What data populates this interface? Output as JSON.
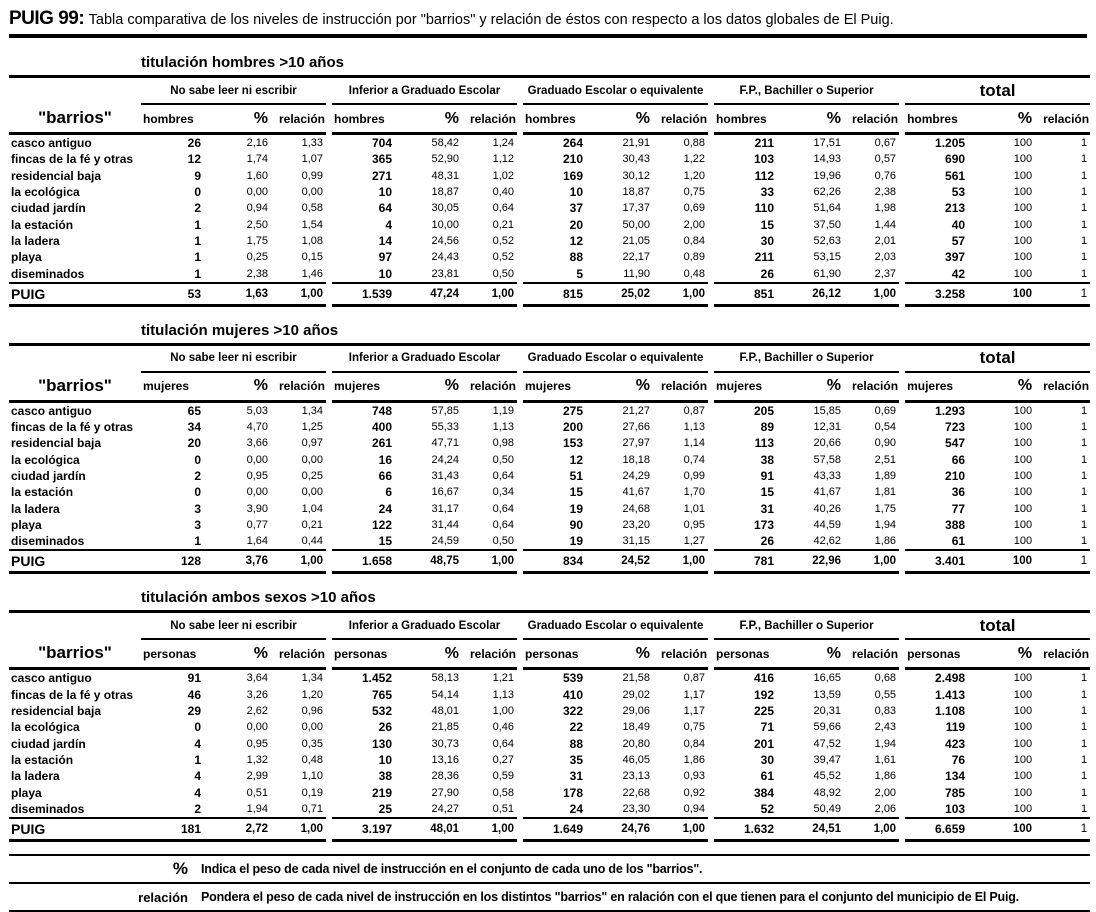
{
  "page": {
    "title_prefix": "PUIG 99:",
    "title_text": "Tabla comparativa de los niveles de instrucción por \"barrios\" y relación de éstos con respecto a los datos globales de El Puig."
  },
  "shared": {
    "row_label_header": "\"barrios\"",
    "groups": [
      "No sabe leer ni escribir",
      "Inferior a Graduado Escolar",
      "Graduado Escolar o equivalente",
      "F.P., Bachiller o Superior",
      "total"
    ],
    "pct_header": "%",
    "rel_header": "relación"
  },
  "tables": [
    {
      "section_title": "titulación hombres >10 años",
      "unit_label": "hombres",
      "rows": [
        {
          "label": "casco antiguo",
          "cells": [
            [
              "26",
              "2,16",
              "1,33"
            ],
            [
              "704",
              "58,42",
              "1,24"
            ],
            [
              "264",
              "21,91",
              "0,88"
            ],
            [
              "211",
              "17,51",
              "0,67"
            ],
            [
              "1.205",
              "100",
              "1"
            ]
          ]
        },
        {
          "label": "fincas de la fé y otras",
          "cells": [
            [
              "12",
              "1,74",
              "1,07"
            ],
            [
              "365",
              "52,90",
              "1,12"
            ],
            [
              "210",
              "30,43",
              "1,22"
            ],
            [
              "103",
              "14,93",
              "0,57"
            ],
            [
              "690",
              "100",
              "1"
            ]
          ]
        },
        {
          "label": "residencial baja",
          "cells": [
            [
              "9",
              "1,60",
              "0,99"
            ],
            [
              "271",
              "48,31",
              "1,02"
            ],
            [
              "169",
              "30,12",
              "1,20"
            ],
            [
              "112",
              "19,96",
              "0,76"
            ],
            [
              "561",
              "100",
              "1"
            ]
          ]
        },
        {
          "label": "la ecológica",
          "cells": [
            [
              "0",
              "0,00",
              "0,00"
            ],
            [
              "10",
              "18,87",
              "0,40"
            ],
            [
              "10",
              "18,87",
              "0,75"
            ],
            [
              "33",
              "62,26",
              "2,38"
            ],
            [
              "53",
              "100",
              "1"
            ]
          ]
        },
        {
          "label": "ciudad jardín",
          "cells": [
            [
              "2",
              "0,94",
              "0,58"
            ],
            [
              "64",
              "30,05",
              "0,64"
            ],
            [
              "37",
              "17,37",
              "0,69"
            ],
            [
              "110",
              "51,64",
              "1,98"
            ],
            [
              "213",
              "100",
              "1"
            ]
          ]
        },
        {
          "label": "la estación",
          "cells": [
            [
              "1",
              "2,50",
              "1,54"
            ],
            [
              "4",
              "10,00",
              "0,21"
            ],
            [
              "20",
              "50,00",
              "2,00"
            ],
            [
              "15",
              "37,50",
              "1,44"
            ],
            [
              "40",
              "100",
              "1"
            ]
          ]
        },
        {
          "label": "la ladera",
          "cells": [
            [
              "1",
              "1,75",
              "1,08"
            ],
            [
              "14",
              "24,56",
              "0,52"
            ],
            [
              "12",
              "21,05",
              "0,84"
            ],
            [
              "30",
              "52,63",
              "2,01"
            ],
            [
              "57",
              "100",
              "1"
            ]
          ]
        },
        {
          "label": "playa",
          "cells": [
            [
              "1",
              "0,25",
              "0,15"
            ],
            [
              "97",
              "24,43",
              "0,52"
            ],
            [
              "88",
              "22,17",
              "0,89"
            ],
            [
              "211",
              "53,15",
              "2,03"
            ],
            [
              "397",
              "100",
              "1"
            ]
          ]
        },
        {
          "label": "diseminados",
          "cells": [
            [
              "1",
              "2,38",
              "1,46"
            ],
            [
              "10",
              "23,81",
              "0,50"
            ],
            [
              "5",
              "11,90",
              "0,48"
            ],
            [
              "26",
              "61,90",
              "2,37"
            ],
            [
              "42",
              "100",
              "1"
            ]
          ]
        }
      ],
      "total_row": {
        "label": "PUIG",
        "cells": [
          [
            "53",
            "1,63",
            "1,00"
          ],
          [
            "1.539",
            "47,24",
            "1,00"
          ],
          [
            "815",
            "25,02",
            "1,00"
          ],
          [
            "851",
            "26,12",
            "1,00"
          ],
          [
            "3.258",
            "100",
            "1"
          ]
        ]
      }
    },
    {
      "section_title": "titulación mujeres >10 años",
      "unit_label": "mujeres",
      "rows": [
        {
          "label": "casco antiguo",
          "cells": [
            [
              "65",
              "5,03",
              "1,34"
            ],
            [
              "748",
              "57,85",
              "1,19"
            ],
            [
              "275",
              "21,27",
              "0,87"
            ],
            [
              "205",
              "15,85",
              "0,69"
            ],
            [
              "1.293",
              "100",
              "1"
            ]
          ]
        },
        {
          "label": "fincas de la fé y otras",
          "cells": [
            [
              "34",
              "4,70",
              "1,25"
            ],
            [
              "400",
              "55,33",
              "1,13"
            ],
            [
              "200",
              "27,66",
              "1,13"
            ],
            [
              "89",
              "12,31",
              "0,54"
            ],
            [
              "723",
              "100",
              "1"
            ]
          ]
        },
        {
          "label": "residencial baja",
          "cells": [
            [
              "20",
              "3,66",
              "0,97"
            ],
            [
              "261",
              "47,71",
              "0,98"
            ],
            [
              "153",
              "27,97",
              "1,14"
            ],
            [
              "113",
              "20,66",
              "0,90"
            ],
            [
              "547",
              "100",
              "1"
            ]
          ]
        },
        {
          "label": "la ecológica",
          "cells": [
            [
              "0",
              "0,00",
              "0,00"
            ],
            [
              "16",
              "24,24",
              "0,50"
            ],
            [
              "12",
              "18,18",
              "0,74"
            ],
            [
              "38",
              "57,58",
              "2,51"
            ],
            [
              "66",
              "100",
              "1"
            ]
          ]
        },
        {
          "label": "ciudad jardín",
          "cells": [
            [
              "2",
              "0,95",
              "0,25"
            ],
            [
              "66",
              "31,43",
              "0,64"
            ],
            [
              "51",
              "24,29",
              "0,99"
            ],
            [
              "91",
              "43,33",
              "1,89"
            ],
            [
              "210",
              "100",
              "1"
            ]
          ]
        },
        {
          "label": "la estación",
          "cells": [
            [
              "0",
              "0,00",
              "0,00"
            ],
            [
              "6",
              "16,67",
              "0,34"
            ],
            [
              "15",
              "41,67",
              "1,70"
            ],
            [
              "15",
              "41,67",
              "1,81"
            ],
            [
              "36",
              "100",
              "1"
            ]
          ]
        },
        {
          "label": "la ladera",
          "cells": [
            [
              "3",
              "3,90",
              "1,04"
            ],
            [
              "24",
              "31,17",
              "0,64"
            ],
            [
              "19",
              "24,68",
              "1,01"
            ],
            [
              "31",
              "40,26",
              "1,75"
            ],
            [
              "77",
              "100",
              "1"
            ]
          ]
        },
        {
          "label": "playa",
          "cells": [
            [
              "3",
              "0,77",
              "0,21"
            ],
            [
              "122",
              "31,44",
              "0,64"
            ],
            [
              "90",
              "23,20",
              "0,95"
            ],
            [
              "173",
              "44,59",
              "1,94"
            ],
            [
              "388",
              "100",
              "1"
            ]
          ]
        },
        {
          "label": "diseminados",
          "cells": [
            [
              "1",
              "1,64",
              "0,44"
            ],
            [
              "15",
              "24,59",
              "0,50"
            ],
            [
              "19",
              "31,15",
              "1,27"
            ],
            [
              "26",
              "42,62",
              "1,86"
            ],
            [
              "61",
              "100",
              "1"
            ]
          ]
        }
      ],
      "total_row": {
        "label": "PUIG",
        "cells": [
          [
            "128",
            "3,76",
            "1,00"
          ],
          [
            "1.658",
            "48,75",
            "1,00"
          ],
          [
            "834",
            "24,52",
            "1,00"
          ],
          [
            "781",
            "22,96",
            "1,00"
          ],
          [
            "3.401",
            "100",
            "1"
          ]
        ]
      }
    },
    {
      "section_title": "titulación ambos sexos >10 años",
      "unit_label": "personas",
      "rows": [
        {
          "label": "casco antiguo",
          "cells": [
            [
              "91",
              "3,64",
              "1,34"
            ],
            [
              "1.452",
              "58,13",
              "1,21"
            ],
            [
              "539",
              "21,58",
              "0,87"
            ],
            [
              "416",
              "16,65",
              "0,68"
            ],
            [
              "2.498",
              "100",
              "1"
            ]
          ]
        },
        {
          "label": "fincas de la fé y otras",
          "cells": [
            [
              "46",
              "3,26",
              "1,20"
            ],
            [
              "765",
              "54,14",
              "1,13"
            ],
            [
              "410",
              "29,02",
              "1,17"
            ],
            [
              "192",
              "13,59",
              "0,55"
            ],
            [
              "1.413",
              "100",
              "1"
            ]
          ]
        },
        {
          "label": "residencial baja",
          "cells": [
            [
              "29",
              "2,62",
              "0,96"
            ],
            [
              "532",
              "48,01",
              "1,00"
            ],
            [
              "322",
              "29,06",
              "1,17"
            ],
            [
              "225",
              "20,31",
              "0,83"
            ],
            [
              "1.108",
              "100",
              "1"
            ]
          ]
        },
        {
          "label": "la ecológica",
          "cells": [
            [
              "0",
              "0,00",
              "0,00"
            ],
            [
              "26",
              "21,85",
              "0,46"
            ],
            [
              "22",
              "18,49",
              "0,75"
            ],
            [
              "71",
              "59,66",
              "2,43"
            ],
            [
              "119",
              "100",
              "1"
            ]
          ]
        },
        {
          "label": "ciudad jardín",
          "cells": [
            [
              "4",
              "0,95",
              "0,35"
            ],
            [
              "130",
              "30,73",
              "0,64"
            ],
            [
              "88",
              "20,80",
              "0,84"
            ],
            [
              "201",
              "47,52",
              "1,94"
            ],
            [
              "423",
              "100",
              "1"
            ]
          ]
        },
        {
          "label": "la estación",
          "cells": [
            [
              "1",
              "1,32",
              "0,48"
            ],
            [
              "10",
              "13,16",
              "0,27"
            ],
            [
              "35",
              "46,05",
              "1,86"
            ],
            [
              "30",
              "39,47",
              "1,61"
            ],
            [
              "76",
              "100",
              "1"
            ]
          ]
        },
        {
          "label": "la ladera",
          "cells": [
            [
              "4",
              "2,99",
              "1,10"
            ],
            [
              "38",
              "28,36",
              "0,59"
            ],
            [
              "31",
              "23,13",
              "0,93"
            ],
            [
              "61",
              "45,52",
              "1,86"
            ],
            [
              "134",
              "100",
              "1"
            ]
          ]
        },
        {
          "label": "playa",
          "cells": [
            [
              "4",
              "0,51",
              "0,19"
            ],
            [
              "219",
              "27,90",
              "0,58"
            ],
            [
              "178",
              "22,68",
              "0,92"
            ],
            [
              "384",
              "48,92",
              "2,00"
            ],
            [
              "785",
              "100",
              "1"
            ]
          ]
        },
        {
          "label": "diseminados",
          "cells": [
            [
              "2",
              "1,94",
              "0,71"
            ],
            [
              "25",
              "24,27",
              "0,51"
            ],
            [
              "24",
              "23,30",
              "0,94"
            ],
            [
              "52",
              "50,49",
              "2,06"
            ],
            [
              "103",
              "100",
              "1"
            ]
          ]
        }
      ],
      "total_row": {
        "label": "PUIG",
        "cells": [
          [
            "181",
            "2,72",
            "1,00"
          ],
          [
            "3.197",
            "48,01",
            "1,00"
          ],
          [
            "1.649",
            "24,76",
            "1,00"
          ],
          [
            "1.632",
            "24,51",
            "1,00"
          ],
          [
            "6.659",
            "100",
            "1"
          ]
        ]
      }
    }
  ],
  "footnotes": [
    {
      "term": "%",
      "definition": "Indica el peso de cada nivel de instrucción en el conjunto de cada uno de los \"barrios\"."
    },
    {
      "term": "relación",
      "definition": "Pondera el peso de cada nivel de instrucción en los distintos \"barrios\" en ralación con el que tienen para el conjunto del municipio de El Puig."
    }
  ]
}
